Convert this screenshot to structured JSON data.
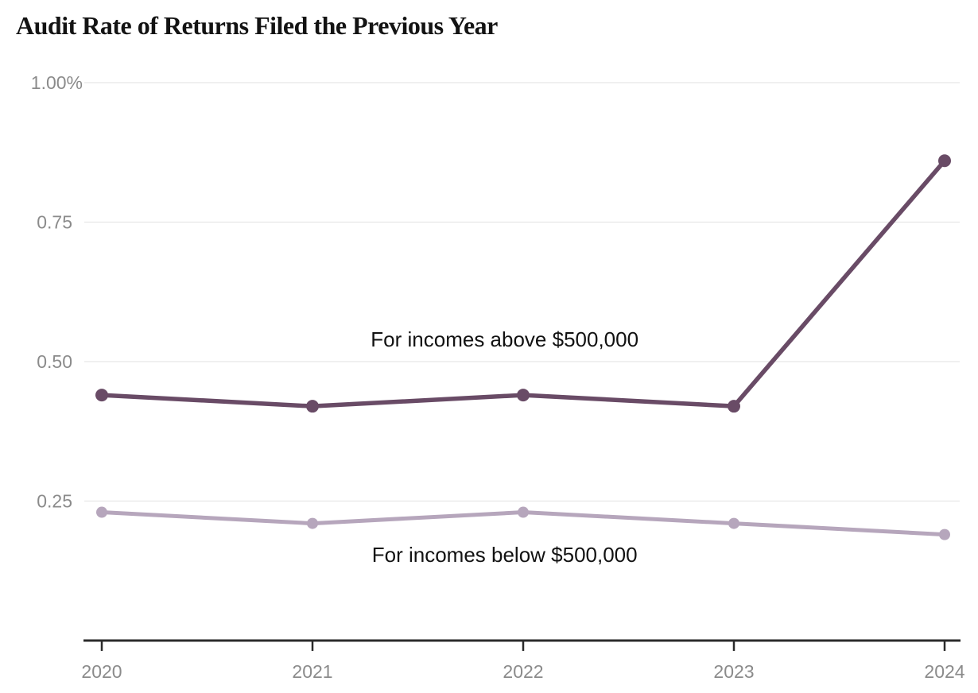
{
  "header": {
    "title": "Audit Rate of Returns Filed the Previous Year"
  },
  "chart_data": {
    "type": "line",
    "title": "Audit Rate of Returns Filed the Previous Year",
    "x": [
      2020,
      2021,
      2022,
      2023,
      2024
    ],
    "x_tick_labels": [
      "2020",
      "2021",
      "2022",
      "2023",
      "2024"
    ],
    "series": [
      {
        "name": "For incomes above $500,000",
        "values": [
          0.44,
          0.42,
          0.44,
          0.42,
          0.86
        ],
        "color": "#694b66",
        "marker_radius": 8,
        "line_width": 5.5,
        "label_x_frac": 0.478,
        "label_y_value": 0.54
      },
      {
        "name": "For incomes below $500,000",
        "values": [
          0.23,
          0.21,
          0.23,
          0.21,
          0.19
        ],
        "color": "#b6a6bc",
        "marker_radius": 7,
        "line_width": 5,
        "label_x_frac": 0.478,
        "label_y_value": 0.154
      }
    ],
    "ylim": [
      0,
      1.07
    ],
    "yticks": [
      0.25,
      0.5,
      0.75,
      1.0
    ],
    "ytick_labels": [
      "0.25",
      "0.50",
      "0.75",
      "1.00%"
    ],
    "unit": "%",
    "grid": "horizontal-only",
    "legend": "inline-annotations",
    "colors": {
      "gridline": "#e6e6e6",
      "axis": "#2b2b2b",
      "tick_label": "#8b8b8b",
      "annotation_text": "#121212",
      "title_text": "#131313",
      "background": "#ffffff"
    }
  }
}
